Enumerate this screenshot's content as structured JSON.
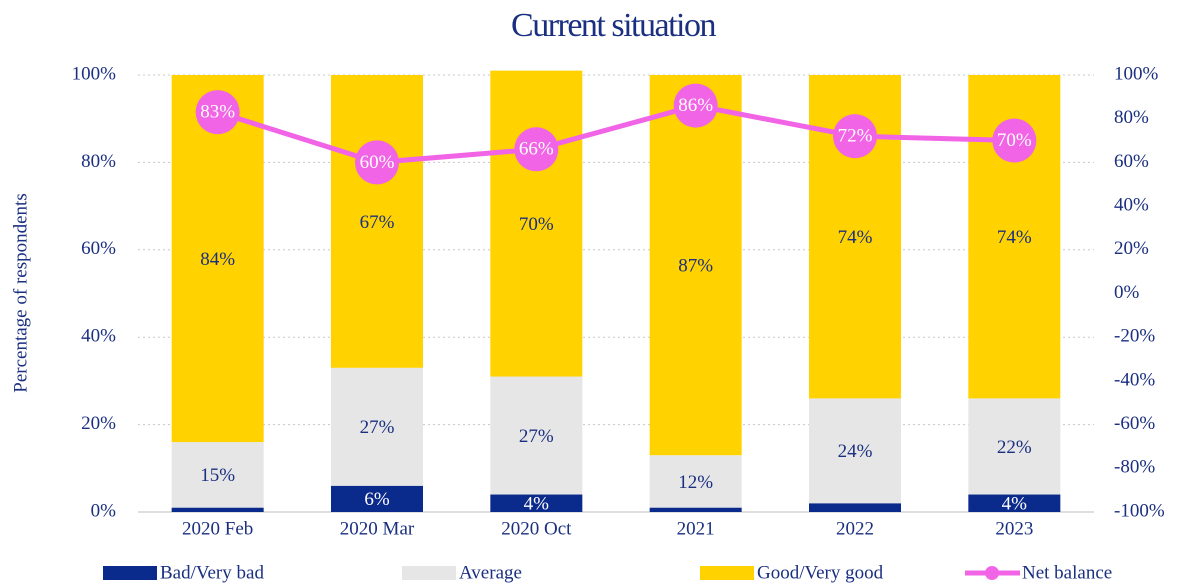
{
  "chart_data": {
    "type": "bar",
    "stacked": true,
    "title": "Current situation",
    "y_label": "Percentage of respondents",
    "categories": [
      "2020 Feb",
      "2020 Mar",
      "2020 Oct",
      "2021",
      "2022",
      "2023"
    ],
    "series": [
      {
        "name": "Bad/Very bad",
        "type": "bar",
        "color": "#0a2a8c",
        "label_color": "#ffffff",
        "values": [
          1,
          6,
          4,
          1,
          2,
          4
        ],
        "value_labels": [
          null,
          "6%",
          "4%",
          null,
          null,
          "4%"
        ]
      },
      {
        "name": "Average",
        "type": "bar",
        "color": "#e6e6e6",
        "label_color": "#1a2f80",
        "values": [
          15,
          27,
          27,
          12,
          24,
          22
        ],
        "value_labels": [
          "15%",
          "27%",
          "27%",
          "12%",
          "24%",
          "22%"
        ]
      },
      {
        "name": "Good/Very good",
        "type": "bar",
        "color": "#ffd200",
        "label_color": "#1a2f80",
        "values": [
          84,
          67,
          70,
          87,
          74,
          74
        ],
        "value_labels": [
          "84%",
          "67%",
          "70%",
          "87%",
          "74%",
          "74%"
        ]
      },
      {
        "name": "Net balance",
        "type": "line",
        "axis": "y2",
        "color": "#f264e6",
        "label_color": "#ffffff",
        "values": [
          83,
          60,
          66,
          86,
          72,
          70
        ],
        "value_labels": [
          "83%",
          "60%",
          "66%",
          "86%",
          "72%",
          "70%"
        ]
      }
    ],
    "ylim": [
      0,
      100
    ],
    "yticks": [
      {
        "value": 0,
        "label": "0%"
      },
      {
        "value": 20,
        "label": "20%"
      },
      {
        "value": 40,
        "label": "40%"
      },
      {
        "value": 60,
        "label": "60%"
      },
      {
        "value": 80,
        "label": "80%"
      },
      {
        "value": 100,
        "label": "100%"
      }
    ],
    "y2lim": [
      -100,
      100
    ],
    "y2ticks": [
      {
        "value": -100,
        "label": "-100%"
      },
      {
        "value": -80,
        "label": "-80%"
      },
      {
        "value": -60,
        "label": "-60%"
      },
      {
        "value": -40,
        "label": "-40%"
      },
      {
        "value": -20,
        "label": "-20%"
      },
      {
        "value": 0,
        "label": "0%"
      },
      {
        "value": 20,
        "label": "20%"
      },
      {
        "value": 40,
        "label": "40%"
      },
      {
        "value": 60,
        "label": "60%"
      },
      {
        "value": 80,
        "label": "80%"
      },
      {
        "value": 100,
        "label": "100%"
      }
    ],
    "grid": true,
    "legend": "bottom"
  }
}
